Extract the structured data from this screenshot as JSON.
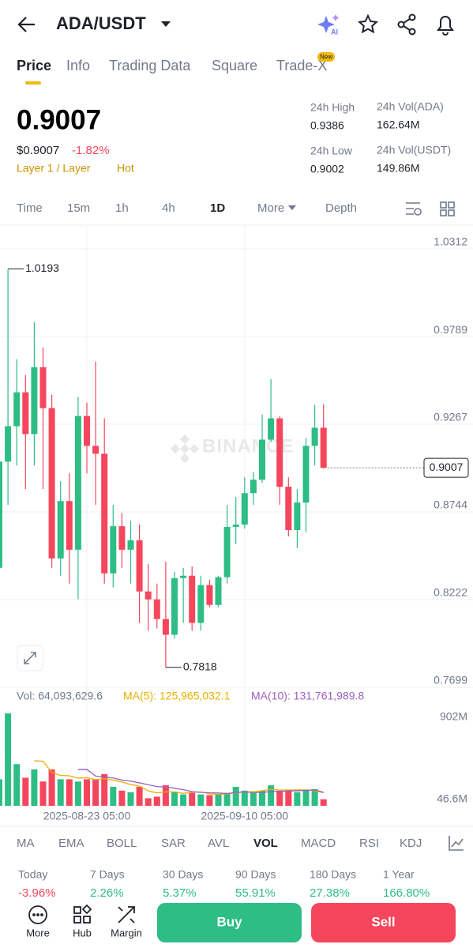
{
  "header": {
    "pair": "ADA/USDT"
  },
  "tabs": [
    "Price",
    "Info",
    "Trading Data",
    "Square",
    "Trade-X"
  ],
  "tab_badge": "New",
  "price": {
    "last": "0.9007",
    "usd": "$0.9007",
    "change": "-1.82%",
    "tags": [
      "Layer 1 / Layer",
      "Hot"
    ]
  },
  "stats": [
    {
      "label": "24h High",
      "value": "0.9386"
    },
    {
      "label": "24h Vol(ADA)",
      "value": "162.64M"
    },
    {
      "label": "24h Low",
      "value": "0.9002"
    },
    {
      "label": "24h Vol(USDT)",
      "value": "149.86M"
    }
  ],
  "intervals": [
    "Time",
    "15m",
    "1h",
    "4h",
    "1D",
    "More",
    "Depth"
  ],
  "watermark": "BINANCE",
  "chart_data": [
    {
      "type": "candlestick",
      "up_color": "#2ebd85",
      "down_color": "#f6465d",
      "categories": [
        null,
        null,
        null,
        null,
        null,
        null,
        null,
        null,
        null,
        null,
        "2025-08-23 05:00",
        null,
        null,
        null,
        null,
        null,
        null,
        null,
        null,
        null,
        null,
        null,
        null,
        null,
        null,
        null,
        null,
        null,
        "2025-09-10 05:00",
        null,
        null,
        null,
        null,
        null,
        null,
        null,
        null,
        null
      ],
      "open": [
        0.8411,
        0.9044,
        0.9255,
        0.9457,
        0.9208,
        0.9607,
        0.9363,
        0.8467,
        0.8809,
        0.8519,
        0.9316,
        0.9138,
        0.9091,
        0.8378,
        0.8659,
        0.8519,
        0.8575,
        0.827,
        0.8223,
        0.8106,
        0.8012,
        0.835,
        0.8364,
        0.8083,
        0.8308,
        0.819,
        0.8355,
        0.8655,
        0.8669,
        0.8856,
        0.8936,
        0.9175,
        0.9302,
        0.8894,
        0.8636,
        0.88,
        0.9138,
        0.9246
      ],
      "high": [
        0.9161,
        1.0193,
        0.9654,
        0.956,
        0.9874,
        0.9724,
        0.9443,
        0.8927,
        0.8974,
        0.9429,
        0.9396,
        0.964,
        0.9302,
        0.8786,
        0.8739,
        0.8692,
        0.8669,
        0.8434,
        0.8317,
        0.8448,
        0.8387,
        0.8411,
        0.842,
        0.8364,
        0.834,
        0.8364,
        0.8786,
        0.8833,
        0.895,
        0.8983,
        0.9325,
        0.9536,
        0.9316,
        0.895,
        0.888,
        0.9185,
        0.9382,
        0.9386
      ],
      "low": [
        0.834,
        0.8786,
        0.9021,
        0.888,
        0.9021,
        0.888,
        0.8411,
        0.8364,
        0.8317,
        0.8223,
        0.8974,
        0.8786,
        0.8317,
        0.8294,
        0.8411,
        0.8317,
        0.8083,
        0.8036,
        0.805,
        0.7818,
        0.7989,
        0.8083,
        0.8036,
        0.8036,
        0.8176,
        0.8176,
        0.8317,
        0.8552,
        0.8645,
        0.8786,
        0.8917,
        0.9161,
        0.8786,
        0.8598,
        0.8528,
        0.8622,
        0.9021,
        0.9002
      ],
      "close": [
        0.9044,
        0.9255,
        0.9457,
        0.9208,
        0.9607,
        0.9363,
        0.8467,
        0.8809,
        0.8519,
        0.9316,
        0.9138,
        0.9091,
        0.8378,
        0.8659,
        0.8519,
        0.8575,
        0.827,
        0.8223,
        0.8106,
        0.8012,
        0.835,
        0.8364,
        0.8083,
        0.8308,
        0.819,
        0.8355,
        0.8655,
        0.8669,
        0.8856,
        0.8936,
        0.9175,
        0.9302,
        0.8894,
        0.8636,
        0.88,
        0.9138,
        0.9246,
        0.9007
      ],
      "ylim": [
        0.7699,
        1.0312
      ],
      "yticks": [
        1.0312,
        0.9789,
        0.9267,
        0.8744,
        0.8222,
        0.7699
      ],
      "max_label": 1.0193,
      "min_label": 0.7818,
      "last_price": 0.9007
    },
    {
      "type": "bar",
      "readout": "Vol: 64,093,629.6",
      "values": [
        259,
        902,
        407,
        274,
        355,
        237,
        355,
        259,
        259,
        237,
        259,
        259,
        310,
        185,
        148,
        133,
        185,
        74,
        89,
        200,
        133,
        111,
        126,
        111,
        104,
        111,
        126,
        185,
        148,
        126,
        148,
        200,
        148,
        148,
        133,
        148,
        163,
        64.09
      ],
      "series": [
        {
          "name": "MA(5): 125,965,032.1",
          "color": "#e6b000",
          "values": [
            null,
            null,
            null,
            null,
            439,
            435,
            326,
            296,
            293,
            269,
            274,
            255,
            265,
            250,
            232,
            207,
            192,
            145,
            126,
            136,
            136,
            121,
            132,
            136,
            117,
            113,
            116,
            127,
            135,
            139,
            147,
            161,
            154,
            154,
            155,
            155,
            148,
            126
          ]
        },
        {
          "name": "MA(10): 131,761,989.8",
          "color": "#9c5fc4",
          "values": [
            null,
            null,
            null,
            null,
            null,
            null,
            null,
            null,
            null,
            354,
            355,
            290,
            281,
            272,
            251,
            241,
            224,
            205,
            188,
            184,
            172,
            157,
            139,
            131,
            127,
            125,
            119,
            130,
            136,
            128,
            130,
            139,
            141,
            145,
            147,
            151,
            155,
            132
          ]
        }
      ],
      "ylim": [
        0,
        902
      ],
      "yticks": [
        {
          "value": 902,
          "label": "902M"
        },
        {
          "value": 46.6,
          "label": "46.6M"
        }
      ]
    }
  ],
  "indicators": [
    "MA",
    "EMA",
    "BOLL",
    "SAR",
    "AVL",
    "VOL",
    "MACD",
    "RSI",
    "KDJ"
  ],
  "performance": [
    {
      "label": "Today",
      "value": "-3.96%"
    },
    {
      "label": "7 Days",
      "value": "2.26%"
    },
    {
      "label": "30 Days",
      "value": "5.37%"
    },
    {
      "label": "90 Days",
      "value": "55.91%"
    },
    {
      "label": "180 Days",
      "value": "27.38%"
    },
    {
      "label": "1 Year",
      "value": "166.80%"
    }
  ],
  "nav": [
    "More",
    "Hub",
    "Margin"
  ],
  "buttons": {
    "buy": "Buy",
    "sell": "Sell"
  }
}
